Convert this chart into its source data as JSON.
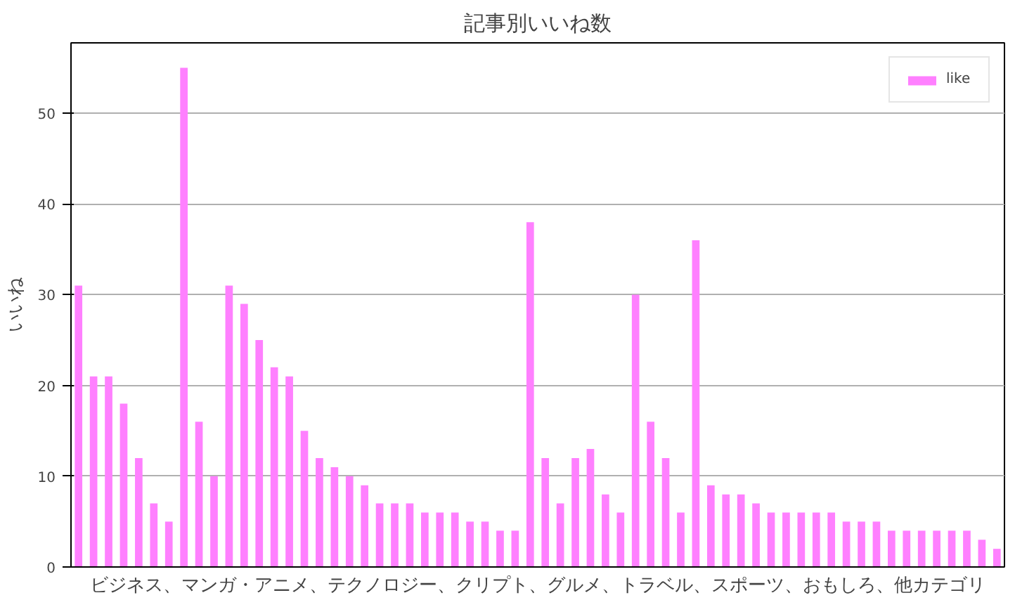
{
  "chart_data": {
    "type": "bar",
    "title": "記事別いいね数",
    "xlabel": "ビジネス、マンガ・アニメ、テクノロジー、クリプト、グルメ、トラベル、スポーツ、おもしろ、他カテゴリ",
    "ylabel": "いいね",
    "categories": [
      null,
      null,
      null,
      null,
      null,
      null,
      null,
      null,
      null,
      null,
      null,
      null,
      null,
      null,
      null,
      null,
      null,
      null,
      null,
      null,
      null,
      null,
      null,
      null,
      null,
      null,
      null,
      null,
      null,
      null,
      null,
      null,
      null,
      null,
      null,
      null,
      null,
      null,
      null,
      null,
      null,
      null,
      null,
      null,
      null,
      null,
      null,
      null,
      null,
      null,
      null,
      null,
      null,
      null,
      null,
      null,
      null,
      null,
      null,
      null,
      null,
      null
    ],
    "series": [
      {
        "name": "like",
        "color": "#ff80ff",
        "values": [
          31,
          21,
          21,
          18,
          12,
          7,
          5,
          55,
          16,
          10,
          31,
          29,
          25,
          22,
          21,
          15,
          12,
          11,
          10,
          9,
          7,
          7,
          7,
          6,
          6,
          6,
          5,
          5,
          4,
          4,
          38,
          12,
          7,
          12,
          13,
          8,
          6,
          30,
          16,
          12,
          6,
          36,
          9,
          8,
          8,
          7,
          6,
          6,
          6,
          6,
          6,
          5,
          5,
          5,
          4,
          4,
          4,
          4,
          4,
          4,
          3,
          2
        ]
      }
    ],
    "ylim": [
      0,
      57.75
    ],
    "yticks": [
      0,
      10,
      20,
      30,
      40,
      50
    ],
    "grid": "y",
    "legend": "top right"
  }
}
